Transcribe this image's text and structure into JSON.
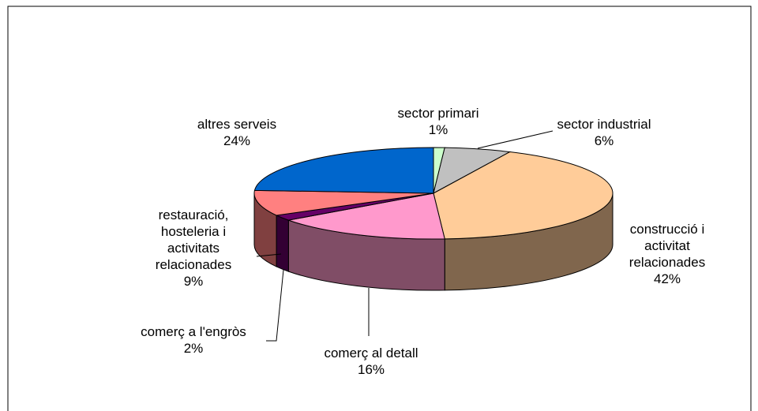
{
  "chart_data": {
    "type": "pie",
    "categories": [
      "sector primari",
      "sector industrial",
      "construcció i activitat relacionades",
      "comerç al detall",
      "comerç a l'engròs",
      "restauració, hosteleria i activitats relacionades",
      "altres serveis"
    ],
    "values": [
      1,
      6,
      42,
      16,
      2,
      9,
      24
    ],
    "value_labels": [
      "1%",
      "6%",
      "42%",
      "16%",
      "2%",
      "9%",
      "24%"
    ],
    "colors": [
      "#ccffcc",
      "#c0c0c0",
      "#ffcc99",
      "#ff99cc",
      "#660066",
      "#ff8080",
      "#0066cc"
    ]
  }
}
